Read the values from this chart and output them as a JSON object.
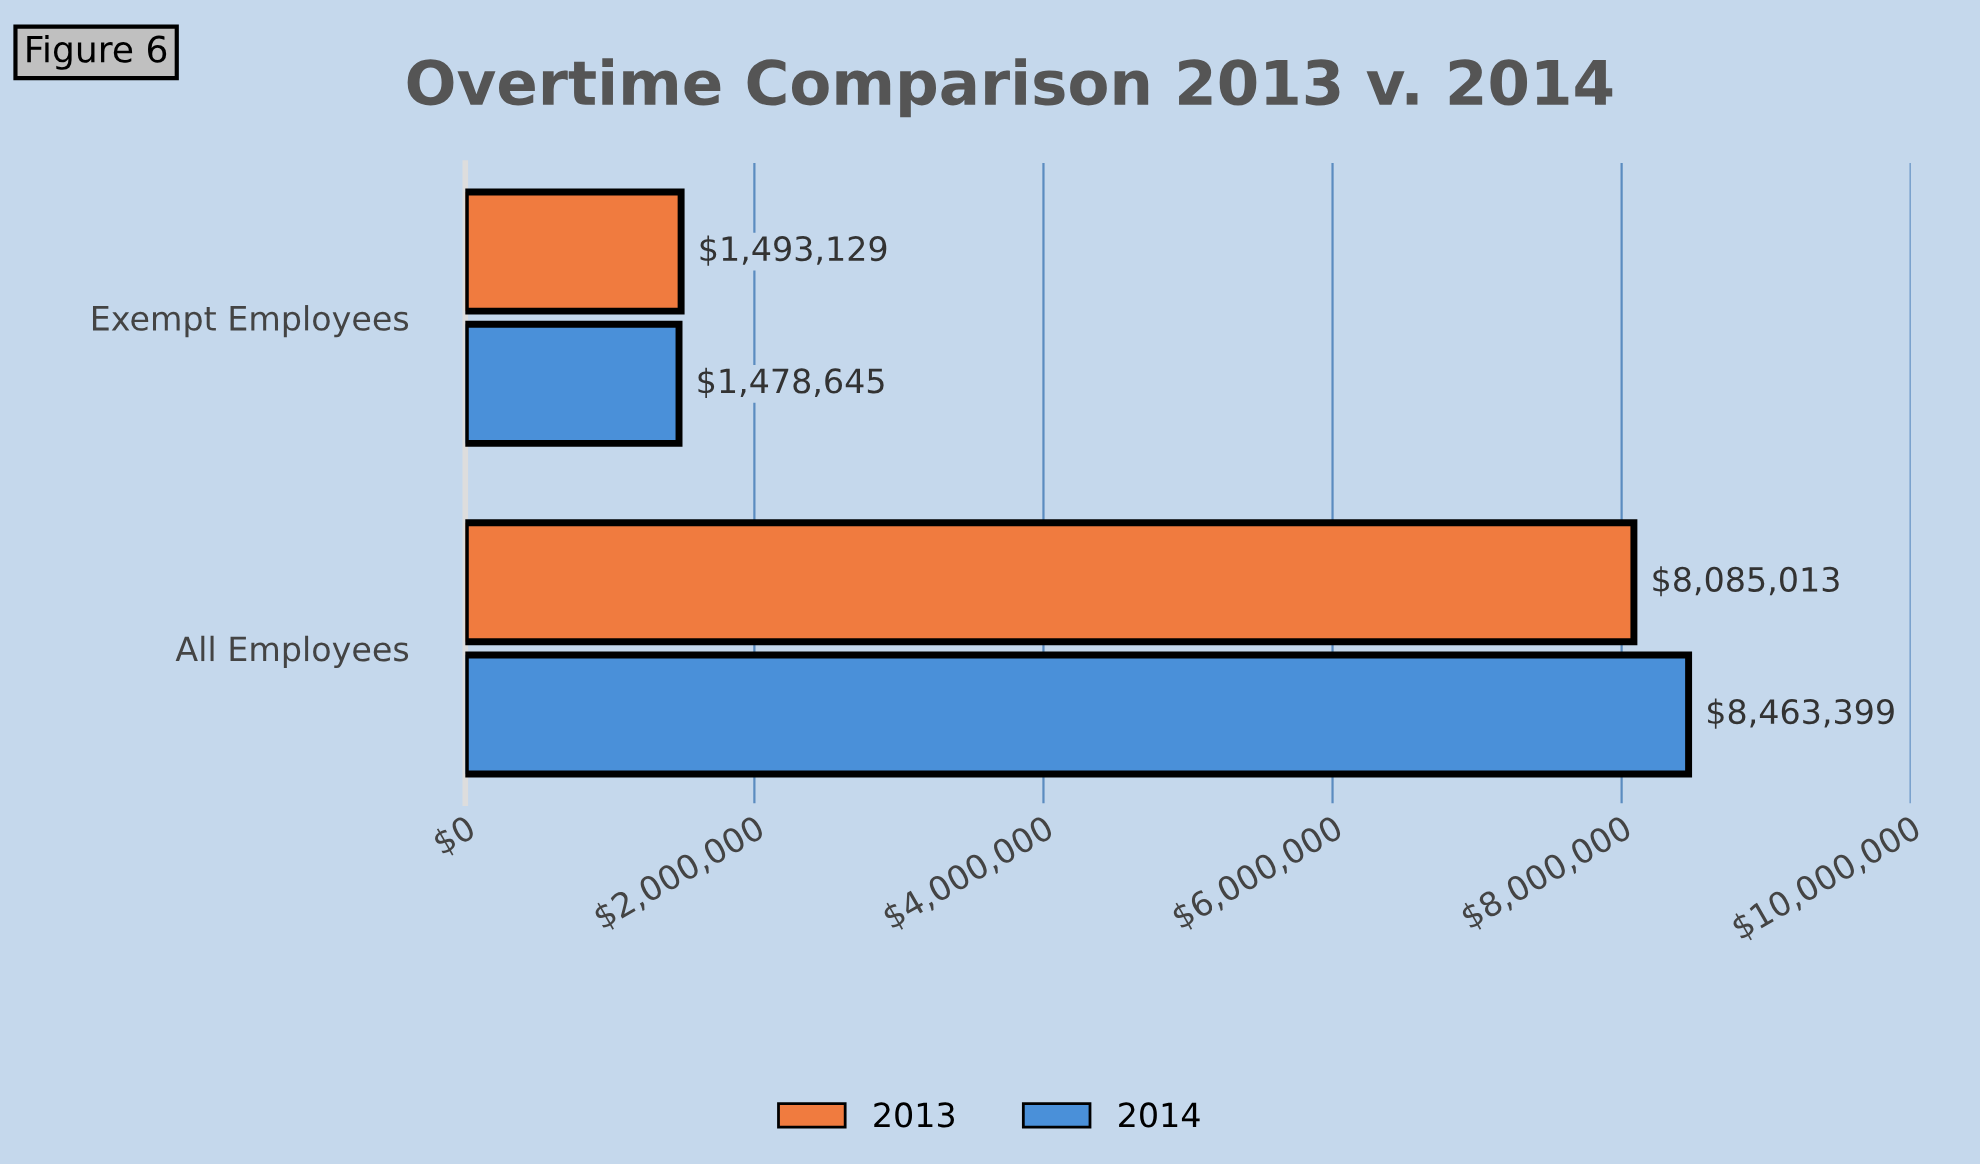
{
  "chart_data": {
    "type": "bar",
    "orientation": "horizontal",
    "title": "Overtime Comparison 2013 v. 2014",
    "annotations": [
      "Figure 6"
    ],
    "categories": [
      "Exempt Employees",
      "All Employees"
    ],
    "series": [
      {
        "name": "2013",
        "color": "#f07b3f",
        "values": [
          1493129,
          8085013
        ],
        "value_labels": [
          "$1,493,129",
          "$8,085,013"
        ]
      },
      {
        "name": "2014",
        "color": "#4a90d9",
        "values": [
          1478645,
          8463399
        ],
        "value_labels": [
          "$1,478,645",
          "$8,463,399"
        ]
      }
    ],
    "xlim": [
      0,
      10000000
    ],
    "xticks": [
      {
        "value": 0,
        "label": "$0"
      },
      {
        "value": 2000000,
        "label": "$2,000,000"
      },
      {
        "value": 4000000,
        "label": "$4,000,000"
      },
      {
        "value": 6000000,
        "label": "$6,000,000"
      },
      {
        "value": 8000000,
        "label": "$8,000,000"
      },
      {
        "value": 10000000,
        "label": "$10,000,000"
      }
    ],
    "grid": "x",
    "legend": "bottom"
  }
}
